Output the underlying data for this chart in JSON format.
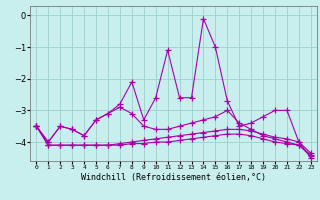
{
  "title": "",
  "xlabel": "Windchill (Refroidissement éolien,°C)",
  "x": [
    0,
    1,
    2,
    3,
    4,
    5,
    6,
    7,
    8,
    9,
    10,
    11,
    12,
    13,
    14,
    15,
    16,
    17,
    18,
    19,
    20,
    21,
    22,
    23
  ],
  "line1": [
    -3.5,
    -4.0,
    -3.5,
    -3.6,
    -3.8,
    -3.3,
    -3.1,
    -2.8,
    -2.1,
    -3.3,
    -2.6,
    -1.1,
    -2.6,
    -2.6,
    -0.1,
    -1.0,
    -2.7,
    -3.5,
    -3.4,
    -3.2,
    -3.0,
    -3.0,
    -4.0,
    -4.5
  ],
  "line2": [
    -3.5,
    -4.0,
    -3.5,
    -3.6,
    -3.8,
    -3.3,
    -3.1,
    -2.9,
    -3.1,
    -3.5,
    -3.6,
    -3.6,
    -3.5,
    -3.4,
    -3.3,
    -3.2,
    -3.0,
    -3.4,
    -3.6,
    -3.8,
    -3.9,
    -4.0,
    -4.1,
    -4.4
  ],
  "line3": [
    -3.5,
    -4.1,
    -4.1,
    -4.1,
    -4.1,
    -4.1,
    -4.1,
    -4.05,
    -4.0,
    -3.95,
    -3.9,
    -3.85,
    -3.8,
    -3.75,
    -3.7,
    -3.65,
    -3.6,
    -3.6,
    -3.65,
    -3.75,
    -3.85,
    -3.9,
    -4.0,
    -4.35
  ],
  "line4": [
    -3.5,
    -4.1,
    -4.1,
    -4.1,
    -4.1,
    -4.1,
    -4.1,
    -4.1,
    -4.05,
    -4.05,
    -4.0,
    -4.0,
    -3.95,
    -3.9,
    -3.85,
    -3.8,
    -3.75,
    -3.75,
    -3.8,
    -3.9,
    -4.0,
    -4.05,
    -4.1,
    -4.45
  ],
  "ylim": [
    -4.6,
    0.3
  ],
  "yticks": [
    0,
    -1,
    -2,
    -3,
    -4
  ],
  "line_color": "#aa00aa",
  "bg_color": "#c8eeed",
  "grid_color": "#9ecfcc",
  "marker": "+",
  "markersize": 4,
  "linewidth": 0.8
}
